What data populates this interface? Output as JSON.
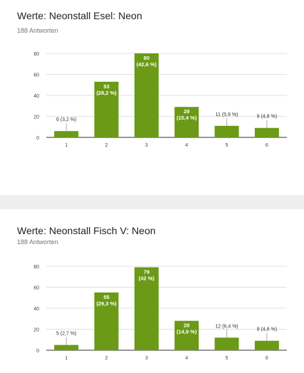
{
  "charts": [
    {
      "title": "Werte: Neonstall Esel: Neon",
      "responses": "188 Antworten"
    },
    {
      "title": "Werte: Neonstall Fisch V: Neon",
      "responses": "188 Antworten"
    }
  ],
  "chart_data": [
    {
      "type": "bar",
      "title": "Werte: Neonstall Esel: Neon",
      "subtitle": "188 Antworten",
      "categories": [
        "1",
        "2",
        "3",
        "4",
        "5",
        "6"
      ],
      "values": [
        6,
        53,
        80,
        29,
        11,
        9
      ],
      "data_labels": [
        [
          "6 (3,2 %)"
        ],
        [
          "53",
          "(28,2 %)"
        ],
        [
          "80",
          "(42,6 %)"
        ],
        [
          "29",
          "(15,4 %)"
        ],
        [
          "11 (5,9 %)"
        ],
        [
          "9 (4,8 %)"
        ]
      ],
      "yticks": [
        "0",
        "20",
        "40",
        "60",
        "80"
      ],
      "ylim": [
        0,
        80
      ],
      "grid": true,
      "bar_color": "#6a9a16"
    },
    {
      "type": "bar",
      "title": "Werte: Neonstall Fisch V: Neon",
      "subtitle": "188 Antworten",
      "categories": [
        "1",
        "2",
        "3",
        "4",
        "5",
        "6"
      ],
      "values": [
        5,
        55,
        79,
        28,
        12,
        9
      ],
      "data_labels": [
        [
          "5 (2,7 %)"
        ],
        [
          "55",
          "(29,3 %)"
        ],
        [
          "79",
          "(42 %)"
        ],
        [
          "28",
          "(14,9 %)"
        ],
        [
          "12 (6,4 %)"
        ],
        [
          "9 (4,8 %)"
        ]
      ],
      "yticks": [
        "0",
        "20",
        "40",
        "60",
        "80"
      ],
      "ylim": [
        0,
        80
      ],
      "grid": true,
      "bar_color": "#6a9a16"
    }
  ]
}
